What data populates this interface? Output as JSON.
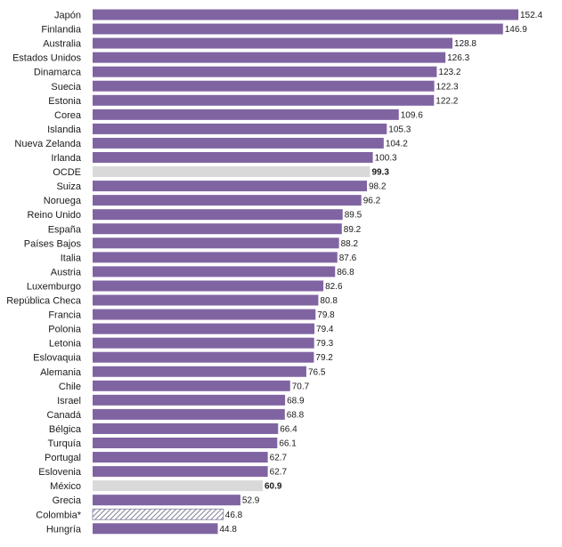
{
  "chart_data": {
    "type": "bar",
    "orientation": "horizontal",
    "categories": [
      "Japón",
      "Finlandia",
      "Australia",
      "Estados Unidos",
      "Dinamarca",
      "Suecia",
      "Estonia",
      "Corea",
      "Islandia",
      "Nueva Zelanda",
      "Irlanda",
      "OCDE",
      "Suiza",
      "Noruega",
      "Reino Unido",
      "España",
      "Países Bajos",
      "Italia",
      "Austria",
      "Luxemburgo",
      "República Checa",
      "Francia",
      "Polonia",
      "Letonia",
      "Eslovaquia",
      "Alemania",
      "Chile",
      "Israel",
      "Canadá",
      "Bélgica",
      "Turquía",
      "Portugal",
      "Eslovenia",
      "México",
      "Grecia",
      "Colombia*",
      "Hungría"
    ],
    "values": [
      152.4,
      146.9,
      128.8,
      126.3,
      123.2,
      122.3,
      122.2,
      109.6,
      105.3,
      104.2,
      100.3,
      99.3,
      98.2,
      96.2,
      89.5,
      89.2,
      88.2,
      87.6,
      86.8,
      82.6,
      80.8,
      79.8,
      79.4,
      79.3,
      79.2,
      76.5,
      70.7,
      68.9,
      68.8,
      66.4,
      66.1,
      62.7,
      62.7,
      60.9,
      52.9,
      46.8,
      44.8
    ],
    "value_labels": [
      "152.4",
      "146.9",
      "128.8",
      "126.3",
      "123.2",
      "122.3",
      "122.2",
      "109.6",
      "105.3",
      "104.2",
      "100.3",
      "99.3",
      "98.2",
      "96.2",
      "89.5",
      "89.2",
      "88.2",
      "87.6",
      "86.8",
      "82.6",
      "80.8",
      "79.8",
      "79.4",
      "79.3",
      "79.2",
      "76.5",
      "70.7",
      "68.9",
      "68.8",
      "66.4",
      "66.1",
      "62.7",
      "62.7",
      "60.9",
      "52.9",
      "46.8",
      "44.8"
    ],
    "highlight": {
      "OCDE": "grey",
      "México": "grey",
      "Colombia*": "hatched"
    },
    "bold_value_labels": [
      "OCDE",
      "México"
    ],
    "xlim": [
      0,
      152.4
    ],
    "grid": false,
    "legend": "none",
    "title": "",
    "xlabel": "",
    "ylabel": ""
  },
  "colors": {
    "bar": "#8064a2",
    "highlight": "#d9d9d9",
    "hatch_stroke": "#7f7f99",
    "hatch_fill": "#ffffff",
    "text": "#1a1a1a"
  }
}
